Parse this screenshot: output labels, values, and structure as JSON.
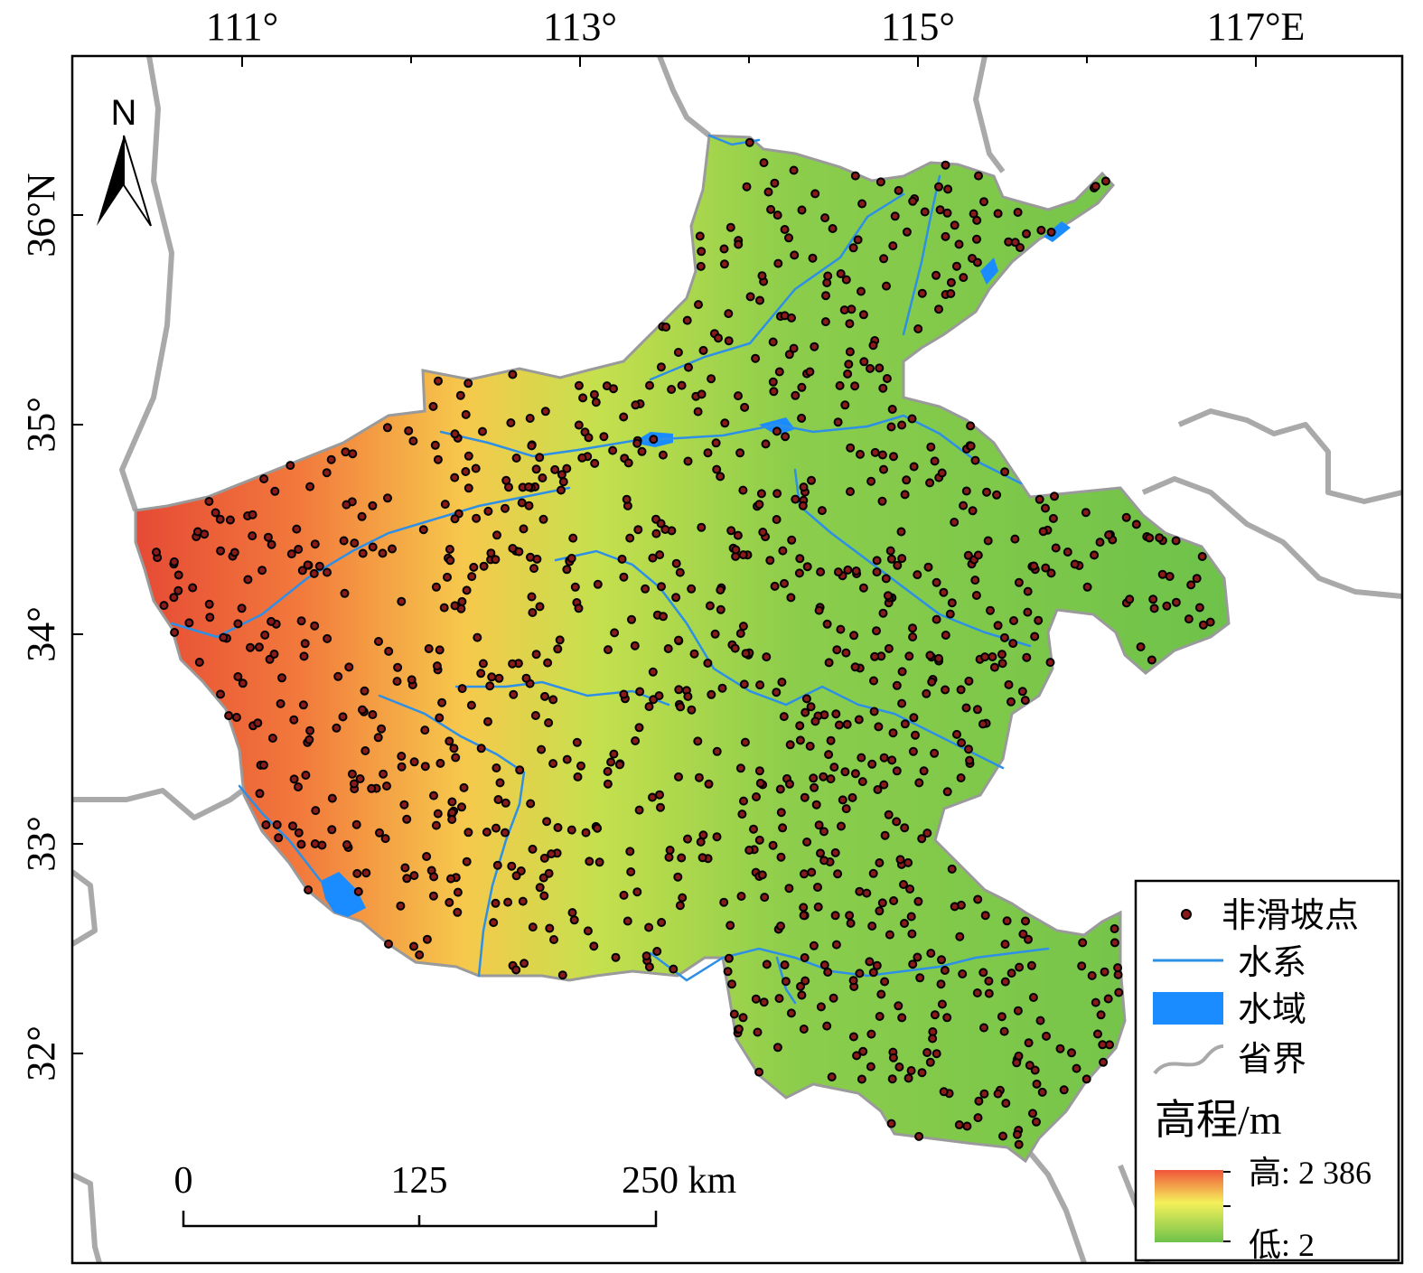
{
  "top_ticks": [
    "111°",
    "113°",
    "115°",
    "117°E"
  ],
  "left_ticks": [
    "36°N",
    "35°",
    "34°",
    "33°",
    "32°"
  ],
  "north_arrow": {
    "label": "N",
    "icon": "north-arrow-icon"
  },
  "scale_bar": {
    "labels": [
      "0",
      "125",
      "250 km"
    ]
  },
  "legend": {
    "items": [
      {
        "label": "非滑坡点",
        "icon": "point-marker-icon"
      },
      {
        "label": "水系",
        "icon": "river-line-icon"
      },
      {
        "label": "水域",
        "icon": "water-area-icon"
      },
      {
        "label": "省界",
        "icon": "boundary-line-icon"
      }
    ],
    "elevation_title": "高程/m",
    "high_label": "高: 2 386",
    "low_label": "低: 2"
  },
  "colors": {
    "point_fill": "#8b1a1a",
    "point_stroke": "#000000",
    "river": "#2e8fe6",
    "water_area": "#1a8cff",
    "boundary": "#a9a9a9",
    "elev_high": "#f0553a",
    "elev_mid": "#f5f05a",
    "elev_low": "#6ec24a"
  }
}
